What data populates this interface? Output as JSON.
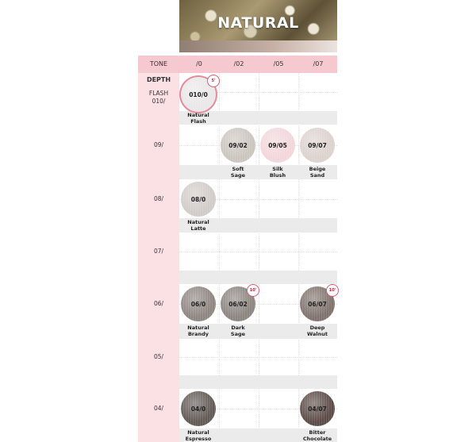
{
  "banner": {
    "title": "NATURAL"
  },
  "header": {
    "tone_label": "TONE",
    "tones": [
      "/0",
      "/02",
      "/05",
      "/07"
    ]
  },
  "depth_label": "DEPTH",
  "rows": [
    {
      "label": "FLASH\n010/",
      "swatches": [
        {
          "col": 0,
          "code": "010/0",
          "name": "Natural\nFlash",
          "color": "#e9e7e7",
          "badge": "5'",
          "flash": true
        }
      ]
    },
    {
      "label": "09/",
      "swatches": [
        {
          "col": 1,
          "code": "09/02",
          "name": "Soft\nSage",
          "color": "#cbc5bf"
        },
        {
          "col": 2,
          "code": "09/05",
          "name": "Silk\nBlush",
          "color": "#f2d6da"
        },
        {
          "col": 3,
          "code": "09/07",
          "name": "Beige\nSand",
          "color": "#dcd2ce"
        }
      ]
    },
    {
      "label": "08/",
      "swatches": [
        {
          "col": 0,
          "code": "08/0",
          "name": "Natural\nLatte",
          "color": "#d2ccc8"
        }
      ]
    },
    {
      "label": "07/",
      "swatches": []
    },
    {
      "label": "06/",
      "swatches": [
        {
          "col": 0,
          "code": "06/0",
          "name": "Natural\nBrandy",
          "color": "#8e8681"
        },
        {
          "col": 1,
          "code": "06/02",
          "name": "Dark\nSage",
          "color": "#8c8580",
          "badge": "10'"
        },
        {
          "col": 3,
          "code": "06/07",
          "name": "Deep\nWalnut",
          "color": "#80736d",
          "badge": "10'"
        }
      ]
    },
    {
      "label": "05/",
      "swatches": []
    },
    {
      "label": "04/",
      "swatches": [
        {
          "col": 0,
          "code": "04/0",
          "name": "Natural\nEspresso",
          "color": "#625a55"
        },
        {
          "col": 3,
          "code": "04/07",
          "name": "Bitter\nChocolate",
          "color": "#5c4c47"
        }
      ]
    }
  ]
}
